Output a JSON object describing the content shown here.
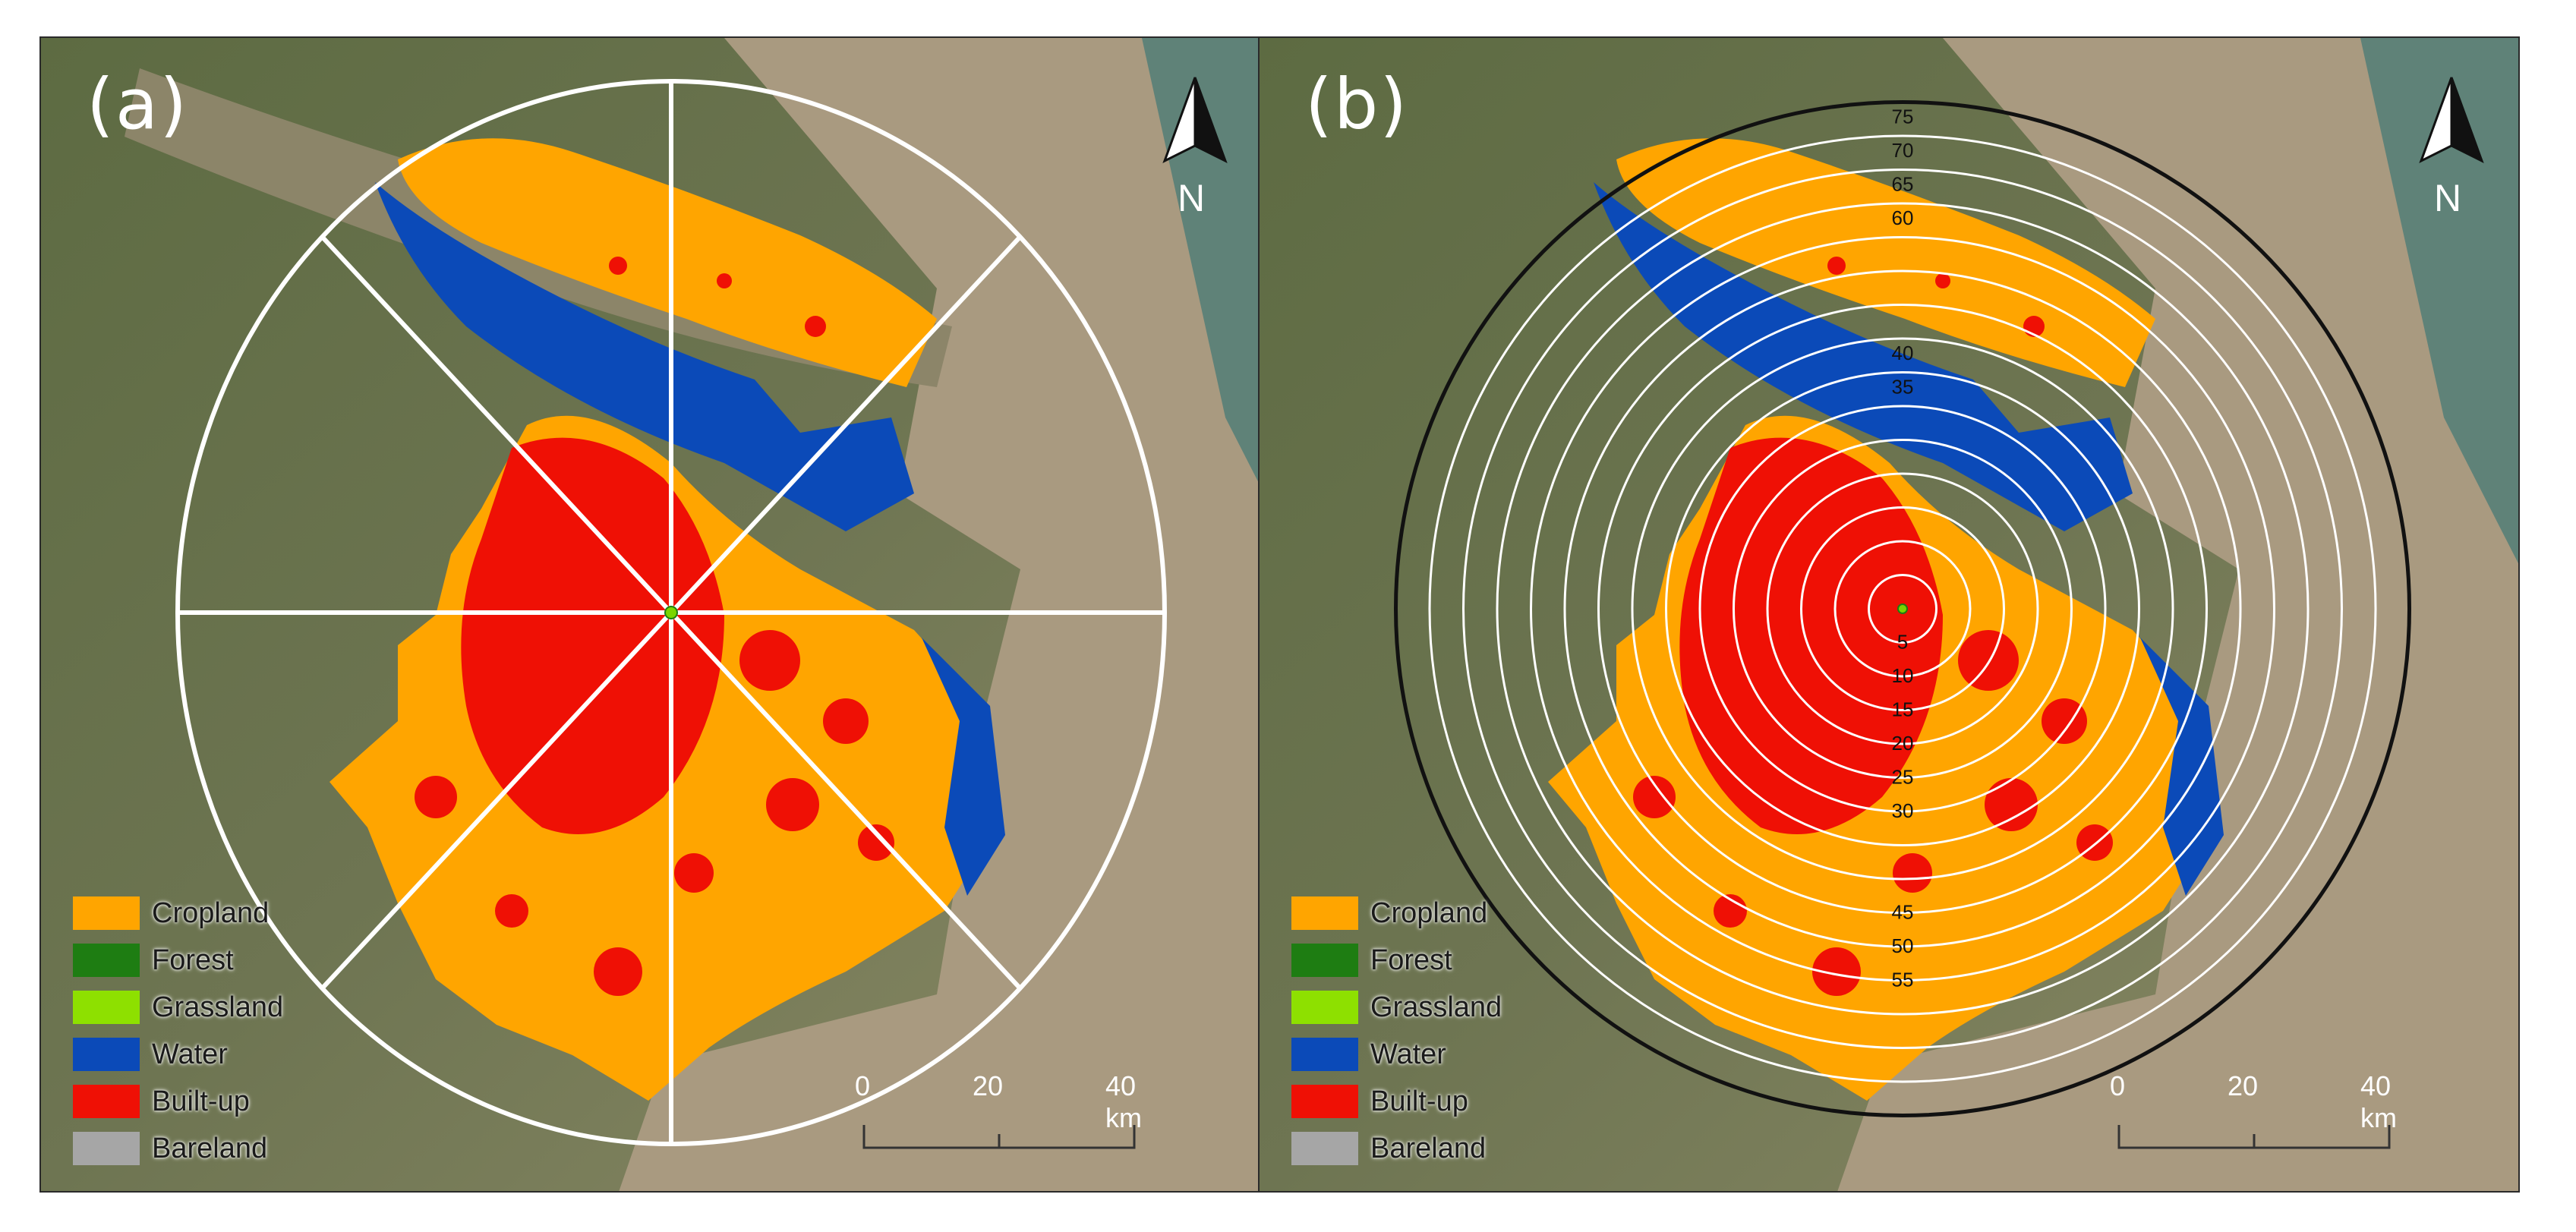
{
  "panels": [
    {
      "label": "(a)",
      "north_label": "N"
    },
    {
      "label": "(b)",
      "north_label": "N"
    }
  ],
  "legend": [
    {
      "label": "Cropland",
      "color": "#ffa500"
    },
    {
      "label": "Forest",
      "color": "#1e7d12"
    },
    {
      "label": "Grassland",
      "color": "#8ee000"
    },
    {
      "label": "Water",
      "color": "#0b4ab8"
    },
    {
      "label": "Built-up",
      "color": "#ef1005"
    },
    {
      "label": "Bareland",
      "color": "#a6a6a6"
    }
  ],
  "scalebar": {
    "ticks": [
      "0",
      "20",
      "40 km"
    ]
  },
  "ring_labels": [
    "5",
    "10",
    "15",
    "20",
    "25",
    "30",
    "35",
    "40",
    "45",
    "50",
    "55",
    "60",
    "65",
    "70",
    "75"
  ],
  "sectors": {
    "count": 8
  }
}
